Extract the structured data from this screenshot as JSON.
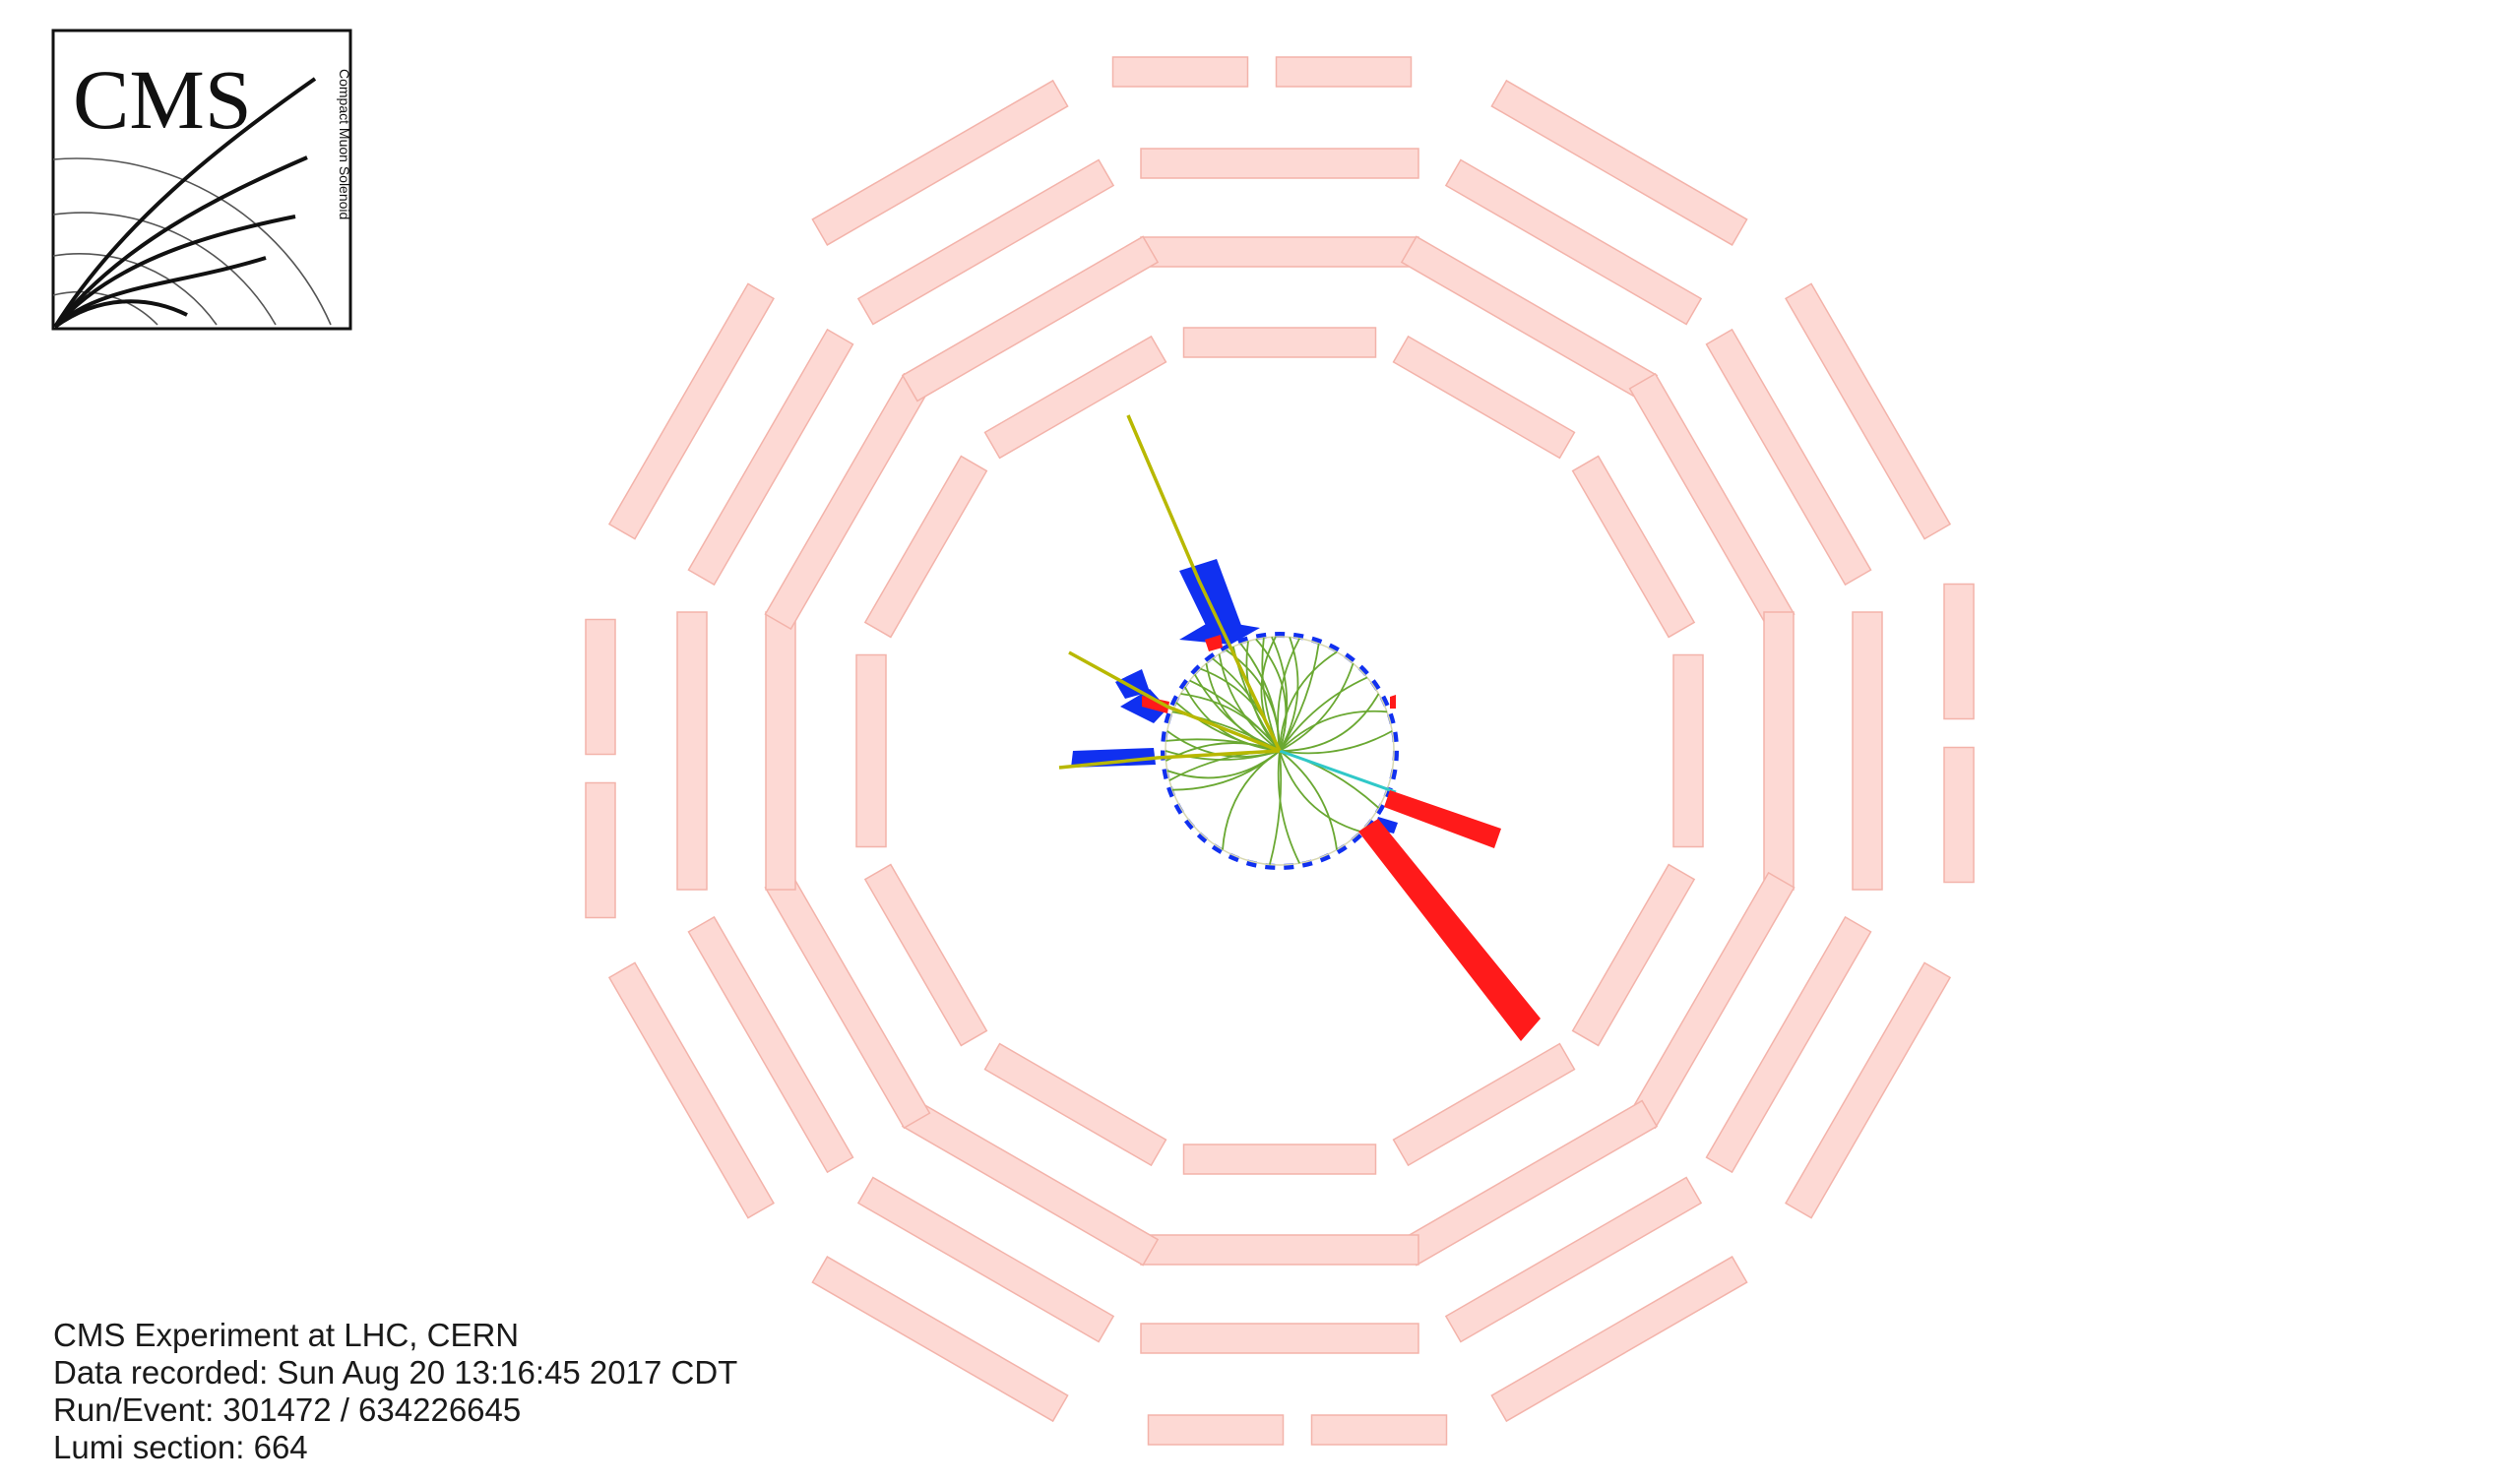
{
  "logo": {
    "text": "CMS",
    "subtitle": "Compact Muon Solenoid"
  },
  "event_info": {
    "line1": "CMS Experiment at LHC, CERN",
    "line2": "Data recorded: Sun Aug 20 13:16:45 2017 CDT",
    "line3": "Run/Event: 301472 / 634226645",
    "line4": "Lumi section: 664"
  },
  "colors": {
    "muon_chamber": "#fdd9d4",
    "muon_chamber_edge": "#f3b3aa",
    "ecal_deposit": "#ff1a1a",
    "hcal_deposit": "#1030f0",
    "track": "#6aa832",
    "muon_track": "#b8b800",
    "electron_track": "#30c8c8"
  }
}
